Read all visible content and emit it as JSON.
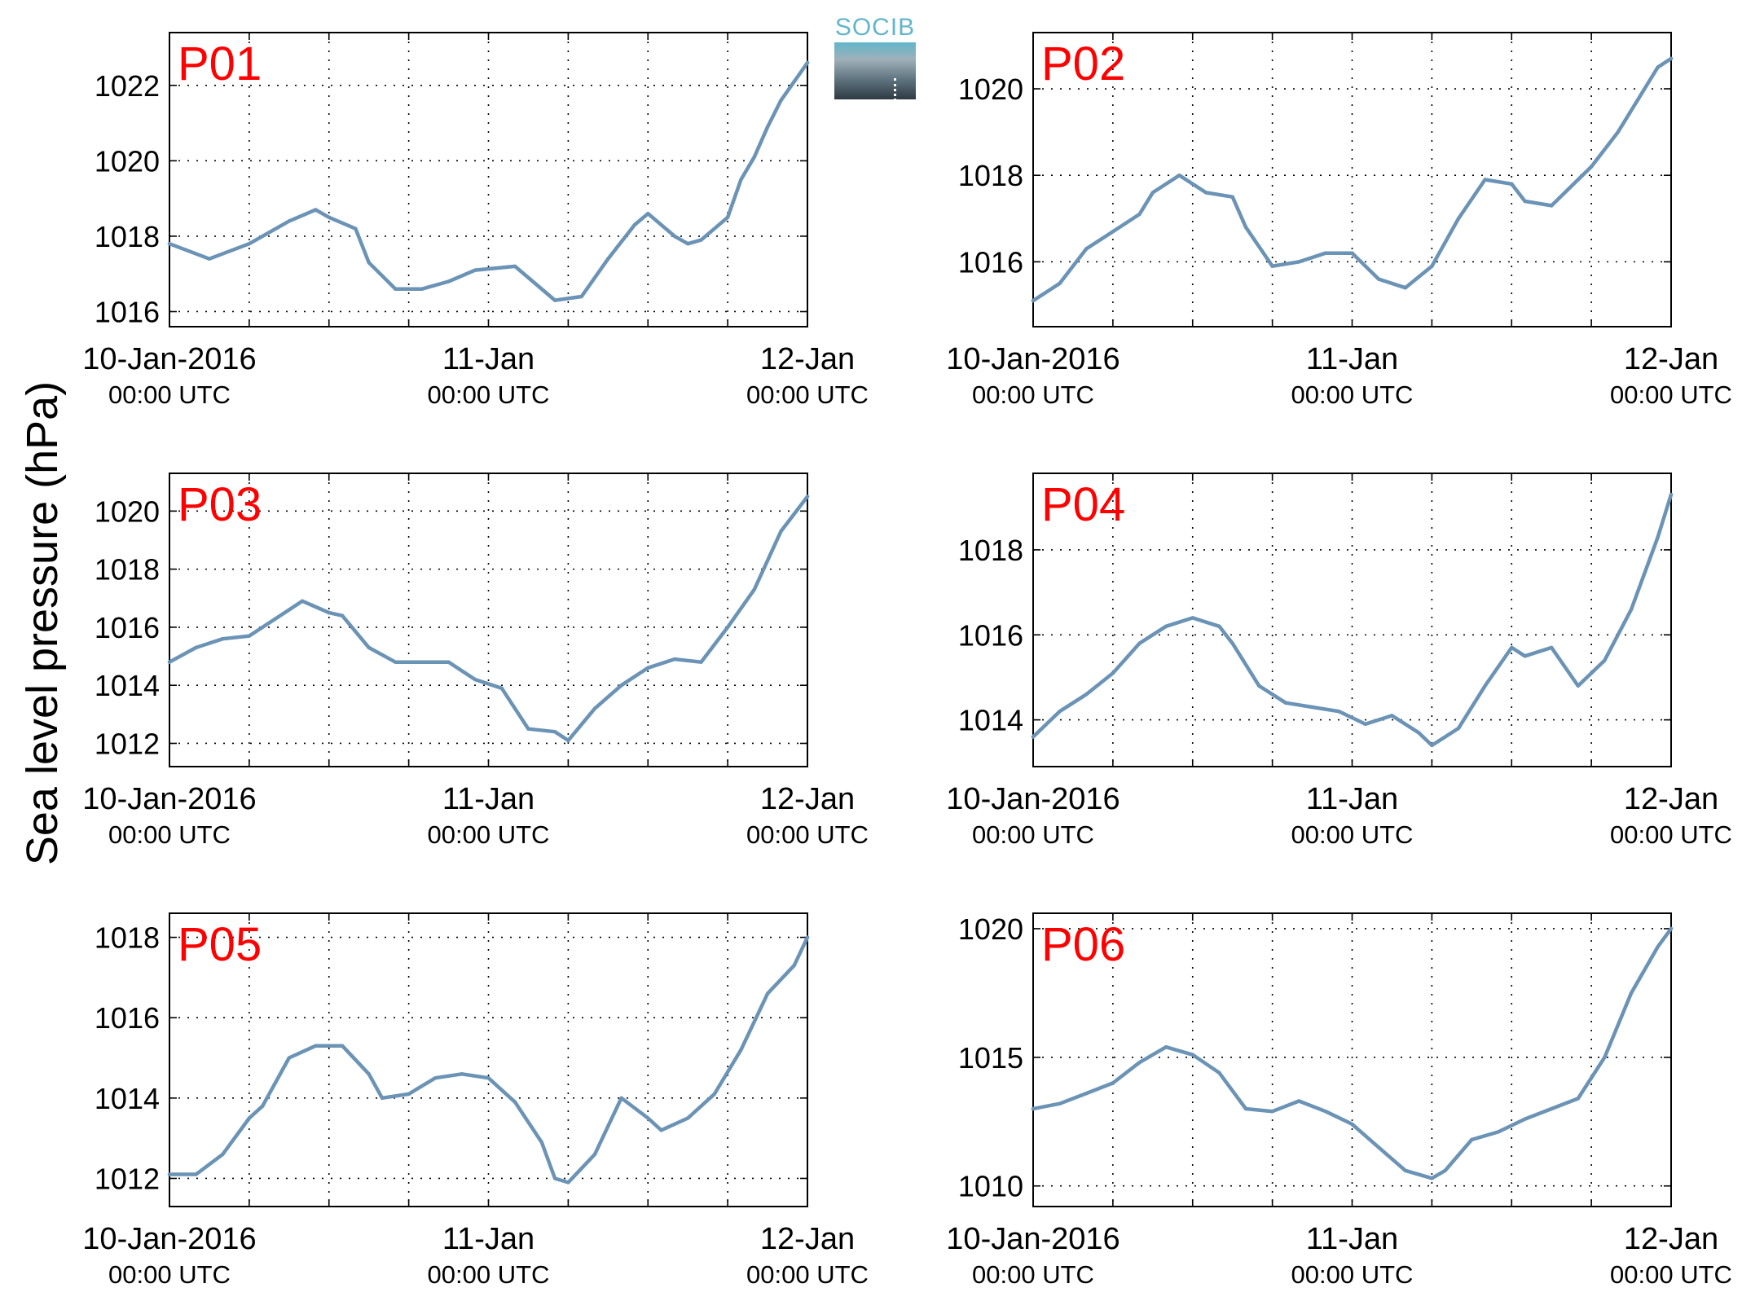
{
  "figure": {
    "ylabel": "Sea level pressure (hPa)",
    "logo_text": "SOCIB"
  },
  "colors": {
    "line": "#6b93b6",
    "panel_label": "#ff0000",
    "axis": "#000000",
    "grid": "#000000"
  },
  "chart_data": [
    {
      "type": "line",
      "label": "P01",
      "x_tick_labels": [
        [
          "10-Jan-2016",
          "00:00 UTC"
        ],
        [
          "11-Jan",
          "00:00 UTC"
        ],
        [
          "12-Jan",
          "00:00 UTC"
        ]
      ],
      "xlim": [
        "2016-01-10T00:00",
        "2016-01-12T00:00"
      ],
      "ylim": [
        1015.6,
        1023.4
      ],
      "yticks": [
        1016,
        1018,
        1020,
        1022
      ],
      "grid": true,
      "series": [
        {
          "x": [
            "2016-01-10T00:00",
            "2016-01-10T03:00",
            "2016-01-10T06:00",
            "2016-01-10T09:00",
            "2016-01-10T11:00",
            "2016-01-10T12:00",
            "2016-01-10T14:00",
            "2016-01-10T15:00",
            "2016-01-10T17:00",
            "2016-01-10T19:00",
            "2016-01-10T21:00",
            "2016-01-10T23:00",
            "2016-01-11T02:00",
            "2016-01-11T05:00",
            "2016-01-11T07:00",
            "2016-01-11T09:00",
            "2016-01-11T11:00",
            "2016-01-11T12:00",
            "2016-01-11T14:00",
            "2016-01-11T15:00",
            "2016-01-11T16:00",
            "2016-01-11T18:00",
            "2016-01-11T19:00",
            "2016-01-11T20:00",
            "2016-01-11T21:00",
            "2016-01-11T22:00",
            "2016-01-11T23:00",
            "2016-01-12T00:00"
          ],
          "y": [
            1017.8,
            1017.4,
            1017.8,
            1018.4,
            1018.7,
            1018.5,
            1018.2,
            1017.3,
            1016.6,
            1016.6,
            1016.8,
            1017.1,
            1017.2,
            1016.3,
            1016.4,
            1017.4,
            1018.3,
            1018.6,
            1018.0,
            1017.8,
            1017.9,
            1018.5,
            1019.5,
            1020.1,
            1020.9,
            1021.6,
            1022.1,
            1022.6
          ]
        }
      ]
    },
    {
      "type": "line",
      "label": "P02",
      "x_tick_labels": [
        [
          "10-Jan-2016",
          "00:00 UTC"
        ],
        [
          "11-Jan",
          "00:00 UTC"
        ],
        [
          "12-Jan",
          "00:00 UTC"
        ]
      ],
      "xlim": [
        "2016-01-10T00:00",
        "2016-01-12T00:00"
      ],
      "ylim": [
        1014.5,
        1021.3
      ],
      "yticks": [
        1016,
        1018,
        1020
      ],
      "grid": true,
      "series": [
        {
          "x": [
            "2016-01-10T00:00",
            "2016-01-10T02:00",
            "2016-01-10T04:00",
            "2016-01-10T06:00",
            "2016-01-10T08:00",
            "2016-01-10T09:00",
            "2016-01-10T11:00",
            "2016-01-10T13:00",
            "2016-01-10T15:00",
            "2016-01-10T16:00",
            "2016-01-10T18:00",
            "2016-01-10T20:00",
            "2016-01-10T22:00",
            "2016-01-11T00:00",
            "2016-01-11T02:00",
            "2016-01-11T04:00",
            "2016-01-11T06:00",
            "2016-01-11T08:00",
            "2016-01-11T10:00",
            "2016-01-11T12:00",
            "2016-01-11T13:00",
            "2016-01-11T15:00",
            "2016-01-11T17:00",
            "2016-01-11T18:00",
            "2016-01-11T20:00",
            "2016-01-11T22:00",
            "2016-01-11T23:00",
            "2016-01-12T00:00"
          ],
          "y": [
            1015.1,
            1015.5,
            1016.3,
            1016.7,
            1017.1,
            1017.6,
            1018.0,
            1017.6,
            1017.5,
            1016.8,
            1015.9,
            1016.0,
            1016.2,
            1016.2,
            1015.6,
            1015.4,
            1015.9,
            1017.0,
            1017.9,
            1017.8,
            1017.4,
            1017.3,
            1017.9,
            1018.2,
            1019.0,
            1020.0,
            1020.5,
            1020.7
          ]
        }
      ]
    },
    {
      "type": "line",
      "label": "P03",
      "x_tick_labels": [
        [
          "10-Jan-2016",
          "00:00 UTC"
        ],
        [
          "11-Jan",
          "00:00 UTC"
        ],
        [
          "12-Jan",
          "00:00 UTC"
        ]
      ],
      "xlim": [
        "2016-01-10T00:00",
        "2016-01-12T00:00"
      ],
      "ylim": [
        1011.2,
        1021.3
      ],
      "yticks": [
        1012,
        1014,
        1016,
        1018,
        1020
      ],
      "grid": true,
      "series": [
        {
          "x": [
            "2016-01-10T00:00",
            "2016-01-10T02:00",
            "2016-01-10T04:00",
            "2016-01-10T06:00",
            "2016-01-10T08:00",
            "2016-01-10T10:00",
            "2016-01-10T12:00",
            "2016-01-10T13:00",
            "2016-01-10T15:00",
            "2016-01-10T17:00",
            "2016-01-10T19:00",
            "2016-01-10T21:00",
            "2016-01-10T23:00",
            "2016-01-11T01:00",
            "2016-01-11T03:00",
            "2016-01-11T05:00",
            "2016-01-11T06:00",
            "2016-01-11T08:00",
            "2016-01-11T10:00",
            "2016-01-11T12:00",
            "2016-01-11T14:00",
            "2016-01-11T16:00",
            "2016-01-11T18:00",
            "2016-01-11T20:00",
            "2016-01-11T22:00",
            "2016-01-12T00:00"
          ],
          "y": [
            1014.8,
            1015.3,
            1015.6,
            1015.7,
            1016.3,
            1016.9,
            1016.5,
            1016.4,
            1015.3,
            1014.8,
            1014.8,
            1014.8,
            1014.2,
            1013.9,
            1012.5,
            1012.4,
            1012.1,
            1013.2,
            1014.0,
            1014.6,
            1014.9,
            1014.8,
            1016.0,
            1017.3,
            1019.3,
            1020.5
          ]
        }
      ]
    },
    {
      "type": "line",
      "label": "P04",
      "x_tick_labels": [
        [
          "10-Jan-2016",
          "00:00 UTC"
        ],
        [
          "11-Jan",
          "00:00 UTC"
        ],
        [
          "12-Jan",
          "00:00 UTC"
        ]
      ],
      "xlim": [
        "2016-01-10T00:00",
        "2016-01-12T00:00"
      ],
      "ylim": [
        1012.9,
        1019.8
      ],
      "yticks": [
        1014,
        1016,
        1018
      ],
      "grid": true,
      "series": [
        {
          "x": [
            "2016-01-10T00:00",
            "2016-01-10T02:00",
            "2016-01-10T04:00",
            "2016-01-10T06:00",
            "2016-01-10T08:00",
            "2016-01-10T10:00",
            "2016-01-10T12:00",
            "2016-01-10T14:00",
            "2016-01-10T15:00",
            "2016-01-10T17:00",
            "2016-01-10T19:00",
            "2016-01-10T21:00",
            "2016-01-10T23:00",
            "2016-01-11T01:00",
            "2016-01-11T03:00",
            "2016-01-11T05:00",
            "2016-01-11T06:00",
            "2016-01-11T08:00",
            "2016-01-11T10:00",
            "2016-01-11T12:00",
            "2016-01-11T13:00",
            "2016-01-11T15:00",
            "2016-01-11T17:00",
            "2016-01-11T19:00",
            "2016-01-11T21:00",
            "2016-01-11T23:00",
            "2016-01-12T00:00"
          ],
          "y": [
            1013.6,
            1014.2,
            1014.6,
            1015.1,
            1015.8,
            1016.2,
            1016.4,
            1016.2,
            1015.8,
            1014.8,
            1014.4,
            1014.3,
            1014.2,
            1013.9,
            1014.1,
            1013.7,
            1013.4,
            1013.8,
            1014.8,
            1015.7,
            1015.5,
            1015.7,
            1014.8,
            1015.4,
            1016.6,
            1018.3,
            1019.3
          ]
        }
      ]
    },
    {
      "type": "line",
      "label": "P05",
      "x_tick_labels": [
        [
          "10-Jan-2016",
          "00:00 UTC"
        ],
        [
          "11-Jan",
          "00:00 UTC"
        ],
        [
          "12-Jan",
          "00:00 UTC"
        ]
      ],
      "xlim": [
        "2016-01-10T00:00",
        "2016-01-12T00:00"
      ],
      "ylim": [
        1011.3,
        1018.6
      ],
      "yticks": [
        1012,
        1014,
        1016,
        1018
      ],
      "grid": true,
      "series": [
        {
          "x": [
            "2016-01-10T00:00",
            "2016-01-10T02:00",
            "2016-01-10T04:00",
            "2016-01-10T06:00",
            "2016-01-10T07:00",
            "2016-01-10T09:00",
            "2016-01-10T11:00",
            "2016-01-10T13:00",
            "2016-01-10T15:00",
            "2016-01-10T16:00",
            "2016-01-10T18:00",
            "2016-01-10T20:00",
            "2016-01-10T22:00",
            "2016-01-11T00:00",
            "2016-01-11T02:00",
            "2016-01-11T04:00",
            "2016-01-11T05:00",
            "2016-01-11T06:00",
            "2016-01-11T08:00",
            "2016-01-11T10:00",
            "2016-01-11T12:00",
            "2016-01-11T13:00",
            "2016-01-11T15:00",
            "2016-01-11T17:00",
            "2016-01-11T19:00",
            "2016-01-11T21:00",
            "2016-01-11T23:00",
            "2016-01-12T00:00"
          ],
          "y": [
            1012.1,
            1012.1,
            1012.6,
            1013.5,
            1013.8,
            1015.0,
            1015.3,
            1015.3,
            1014.6,
            1014.0,
            1014.1,
            1014.5,
            1014.6,
            1014.5,
            1013.9,
            1012.9,
            1012.0,
            1011.9,
            1012.6,
            1014.0,
            1013.5,
            1013.2,
            1013.5,
            1014.1,
            1015.2,
            1016.6,
            1017.3,
            1018.0
          ]
        }
      ]
    },
    {
      "type": "line",
      "label": "P06",
      "x_tick_labels": [
        [
          "10-Jan-2016",
          "00:00 UTC"
        ],
        [
          "11-Jan",
          "00:00 UTC"
        ],
        [
          "12-Jan",
          "00:00 UTC"
        ]
      ],
      "xlim": [
        "2016-01-10T00:00",
        "2016-01-12T00:00"
      ],
      "ylim": [
        1009.2,
        1020.6
      ],
      "yticks": [
        1010,
        1015,
        1020
      ],
      "grid": true,
      "series": [
        {
          "x": [
            "2016-01-10T00:00",
            "2016-01-10T02:00",
            "2016-01-10T04:00",
            "2016-01-10T06:00",
            "2016-01-10T08:00",
            "2016-01-10T10:00",
            "2016-01-10T12:00",
            "2016-01-10T14:00",
            "2016-01-10T16:00",
            "2016-01-10T18:00",
            "2016-01-10T20:00",
            "2016-01-10T22:00",
            "2016-01-11T00:00",
            "2016-01-11T02:00",
            "2016-01-11T04:00",
            "2016-01-11T06:00",
            "2016-01-11T07:00",
            "2016-01-11T09:00",
            "2016-01-11T11:00",
            "2016-01-11T13:00",
            "2016-01-11T15:00",
            "2016-01-11T17:00",
            "2016-01-11T19:00",
            "2016-01-11T21:00",
            "2016-01-11T23:00",
            "2016-01-12T00:00"
          ],
          "y": [
            1013.0,
            1013.2,
            1013.6,
            1014.0,
            1014.8,
            1015.4,
            1015.1,
            1014.4,
            1013.0,
            1012.9,
            1013.3,
            1012.9,
            1012.4,
            1011.5,
            1010.6,
            1010.3,
            1010.6,
            1011.8,
            1012.1,
            1012.6,
            1013.0,
            1013.4,
            1015.0,
            1017.5,
            1019.3,
            1020.0
          ]
        }
      ]
    }
  ]
}
